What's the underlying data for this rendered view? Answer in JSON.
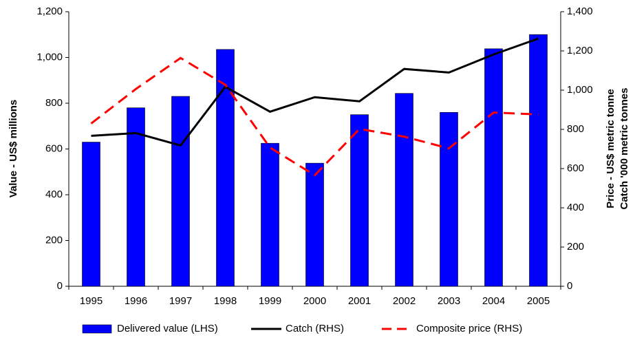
{
  "chart_data": {
    "type": "bar-line",
    "categories": [
      "1995",
      "1996",
      "1997",
      "1998",
      "1999",
      "2000",
      "2001",
      "2002",
      "2003",
      "2004",
      "2005"
    ],
    "y_label": "Value - US$ millions",
    "y2_label": [
      "Price - US$ metric tonne",
      "Catch '000 metric tonnes"
    ],
    "ylim": [
      0,
      1200
    ],
    "yticks": [
      0,
      200,
      400,
      600,
      800,
      {
        "value": 1000,
        "label": "1,000"
      },
      {
        "value": 1200,
        "label": "1,200"
      }
    ],
    "y2lim": [
      0,
      1400
    ],
    "y2ticks": [
      0,
      200,
      400,
      600,
      800,
      {
        "value": 1000,
        "label": "1,000"
      },
      {
        "value": 1200,
        "label": "1,200"
      },
      {
        "value": 1400,
        "label": "1,400"
      }
    ],
    "series": [
      {
        "name": "Delivered value (LHS)",
        "kind": "bar",
        "color": "#0000ff",
        "values": [
          630,
          780,
          830,
          1035,
          625,
          538,
          750,
          843,
          760,
          1038,
          1100
        ]
      },
      {
        "name": "Catch (RHS)",
        "kind": "line",
        "axis": "y2",
        "color": "#000000",
        "values": [
          767,
          781,
          718,
          1017,
          890,
          964,
          943,
          1108,
          1090,
          1182,
          1263
        ]
      },
      {
        "name": "Composite price (RHS)",
        "kind": "dashed",
        "axis": "y2",
        "color": "#ff0000",
        "values": [
          830,
          1006,
          1164,
          1027,
          707,
          566,
          802,
          763,
          703,
          886,
          876
        ]
      }
    ]
  }
}
